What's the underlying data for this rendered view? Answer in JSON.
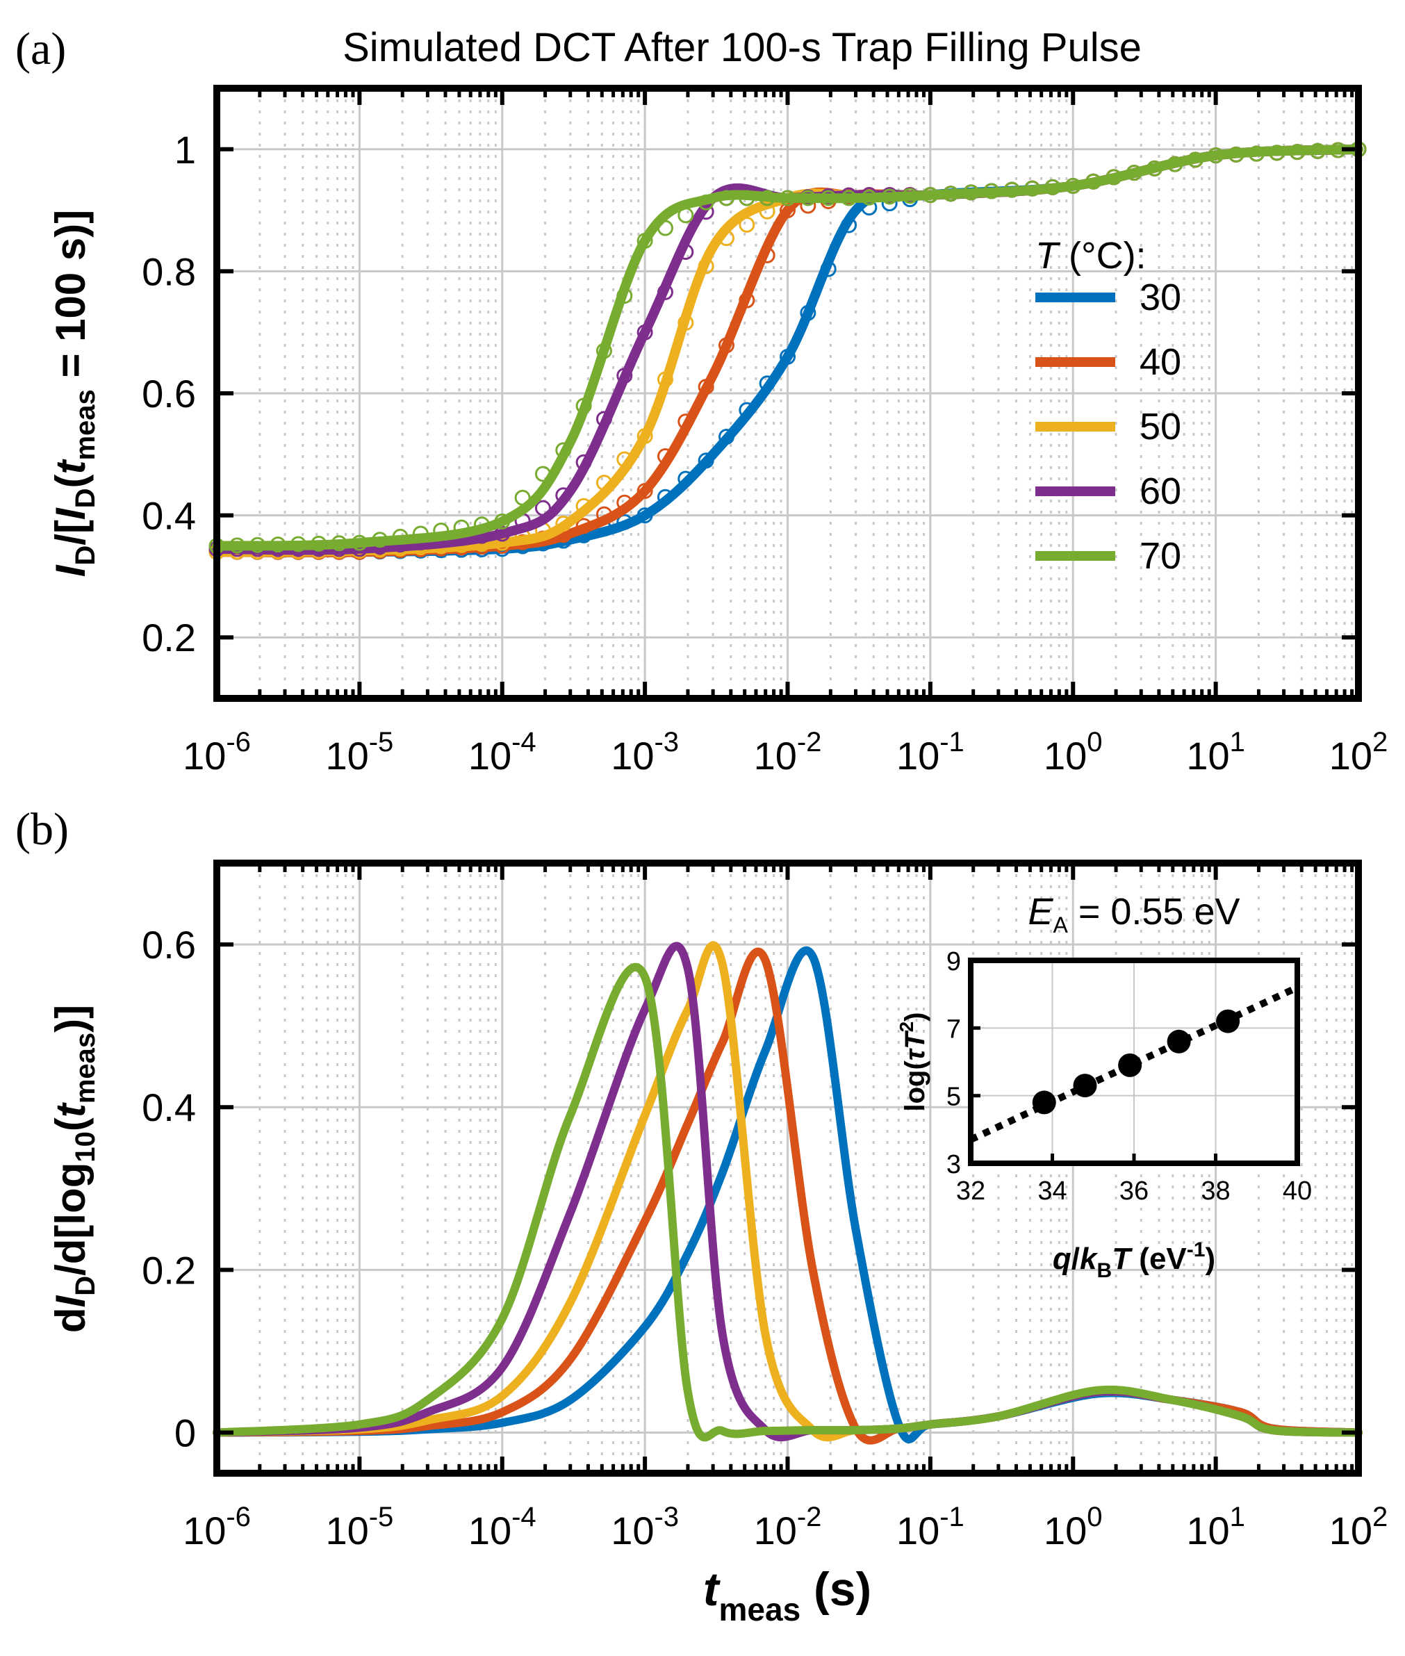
{
  "figure": {
    "title": "Simulated DCT After 100-s Trap Filling Pulse",
    "panel_a_tag": "(a)",
    "panel_b_tag": "(b)",
    "x_tick_exponents": [
      "-6",
      "-5",
      "-4",
      "-3",
      "-2",
      "-1",
      "0",
      "1",
      "2"
    ],
    "x_tick_base": "10",
    "x_title": {
      "symbol": "t",
      "sub": "meas",
      "unit": " (s)"
    },
    "a_y_title": {
      "p1": "I",
      "p1sub": "D",
      "p2": "/[",
      "p3": "I",
      "p3sub": "D",
      "p4": "(",
      "p5": "t",
      "p5sub": "meas",
      "p6": " = 100 s)]"
    },
    "b_y_title": {
      "p1": "d",
      "p2": "I",
      "p2sub": "D",
      "p3": "/d[log",
      "p3sub": "10",
      "p4": "(",
      "p5": "t",
      "p5sub": "meas",
      "p6": ")]"
    },
    "legend": {
      "title_symbol": "T",
      "title_rest": " (°C):",
      "entries": [
        "30",
        "40",
        "50",
        "60",
        "70"
      ]
    },
    "inset": {
      "annotation_symbol": "E",
      "annotation_sub": "A",
      "annotation_rest": " = 0.55 eV",
      "x_title": {
        "p1": "q",
        "p2": "/",
        "p3": "k",
        "p3sub": "B",
        "p4": "T",
        "p5": " (eV",
        "p5sup": "-1",
        "p6": ")"
      },
      "y_title": {
        "p1": "log(",
        "p2": "τ",
        "p3": "T",
        "p3sup": "2",
        "p4": ")"
      }
    }
  },
  "colors": {
    "30": "#0072BD",
    "40": "#D95319",
    "50": "#EDB120",
    "60": "#7E2F8E",
    "70": "#77AC30",
    "axes": "#000000",
    "grid": "#c8c8c8"
  },
  "chart_data": [
    {
      "panel": "a",
      "type": "line",
      "title": "Simulated DCT After 100-s Trap Filling Pulse",
      "xlabel": "t_meas (s)",
      "ylabel": "I_D/[I_D(t_meas = 100 s)]",
      "xscale": "log",
      "xlim": [
        1e-06,
        100
      ],
      "ylim": [
        0.1,
        1.1
      ],
      "y_ticks": [
        0.2,
        0.4,
        0.6,
        0.8,
        1
      ],
      "grid": true,
      "legend_title": "T (°C):",
      "legend_position": "right",
      "markers": "open circles",
      "x": [
        1e-06,
        1e-05,
        0.0001,
        0.0003,
        0.001,
        0.003,
        0.01,
        0.03,
        0.1,
        1,
        10,
        100
      ],
      "series": [
        {
          "name": "30",
          "values": [
            0.34,
            0.34,
            0.345,
            0.36,
            0.4,
            0.5,
            0.66,
            0.9,
            0.925,
            0.94,
            0.99,
            1.0
          ]
        },
        {
          "name": "40",
          "values": [
            0.34,
            0.34,
            0.35,
            0.37,
            0.44,
            0.63,
            0.9,
            0.925,
            0.925,
            0.94,
            0.99,
            1.0
          ]
        },
        {
          "name": "50",
          "values": [
            0.34,
            0.342,
            0.355,
            0.39,
            0.53,
            0.84,
            0.92,
            0.925,
            0.925,
            0.94,
            0.99,
            1.0
          ]
        },
        {
          "name": "60",
          "values": [
            0.345,
            0.345,
            0.37,
            0.44,
            0.7,
            0.92,
            0.92,
            0.925,
            0.925,
            0.94,
            0.99,
            1.0
          ]
        },
        {
          "name": "70",
          "values": [
            0.35,
            0.355,
            0.39,
            0.52,
            0.85,
            0.92,
            0.92,
            0.92,
            0.925,
            0.94,
            0.99,
            1.0
          ]
        }
      ]
    },
    {
      "panel": "b",
      "type": "line",
      "xlabel": "t_meas (s)",
      "ylabel": "dI_D/d[log10(t_meas)]",
      "xscale": "log",
      "xlim": [
        1e-06,
        100
      ],
      "ylim": [
        -0.05,
        0.7
      ],
      "y_ticks": [
        0,
        0.2,
        0.4,
        0.6
      ],
      "grid": true,
      "x": [
        1e-06,
        1e-05,
        3e-05,
        0.0001,
        0.0003,
        0.001,
        0.002,
        0.0035,
        0.007,
        0.015,
        0.03,
        0.06,
        0.1,
        0.3,
        1.5,
        5,
        15,
        25,
        100
      ],
      "series": [
        {
          "name": "30",
          "values": [
            0,
            0.001,
            0.004,
            0.012,
            0.04,
            0.13,
            0.22,
            0.32,
            0.47,
            0.585,
            0.25,
            0.01,
            0.01,
            0.02,
            0.048,
            0.04,
            0.025,
            0.005,
            0
          ]
        },
        {
          "name": "40",
          "values": [
            0,
            0.002,
            0.008,
            0.025,
            0.09,
            0.26,
            0.38,
            0.48,
            0.58,
            0.2,
            0.005,
            0.005,
            0.01,
            0.02,
            0.05,
            0.04,
            0.025,
            0.005,
            0
          ]
        },
        {
          "name": "50",
          "values": [
            0,
            0.004,
            0.015,
            0.045,
            0.16,
            0.39,
            0.52,
            0.575,
            0.12,
            0.003,
            0.003,
            0.005,
            0.01,
            0.02,
            0.05,
            0.04,
            0.02,
            0.003,
            0
          ]
        },
        {
          "name": "60",
          "values": [
            0,
            0.006,
            0.025,
            0.08,
            0.27,
            0.52,
            0.57,
            0.12,
            0.003,
            0.003,
            0.003,
            0.005,
            0.01,
            0.02,
            0.05,
            0.04,
            0.02,
            0.003,
            0
          ]
        },
        {
          "name": "70",
          "values": [
            0,
            0.01,
            0.04,
            0.14,
            0.39,
            0.56,
            0.05,
            0.002,
            0.002,
            0.003,
            0.003,
            0.005,
            0.01,
            0.02,
            0.052,
            0.04,
            0.02,
            0.003,
            0
          ]
        }
      ]
    },
    {
      "panel": "b-inset",
      "type": "scatter",
      "xlabel": "q/k_B T (eV^-1)",
      "ylabel": "log(τT^2)",
      "annotation": "E_A = 0.55 eV",
      "xlim": [
        32,
        40
      ],
      "ylim": [
        3,
        9
      ],
      "x_ticks": [
        32,
        34,
        36,
        38,
        40
      ],
      "y_ticks": [
        3,
        5,
        7,
        9
      ],
      "points": {
        "x": [
          33.8,
          34.8,
          35.9,
          37.1,
          38.3
        ],
        "y": [
          4.8,
          5.3,
          5.9,
          6.6,
          7.2
        ]
      },
      "fit_line": {
        "x": [
          32,
          40
        ],
        "y": [
          3.7,
          8.2
        ],
        "style": "dotted"
      }
    }
  ]
}
